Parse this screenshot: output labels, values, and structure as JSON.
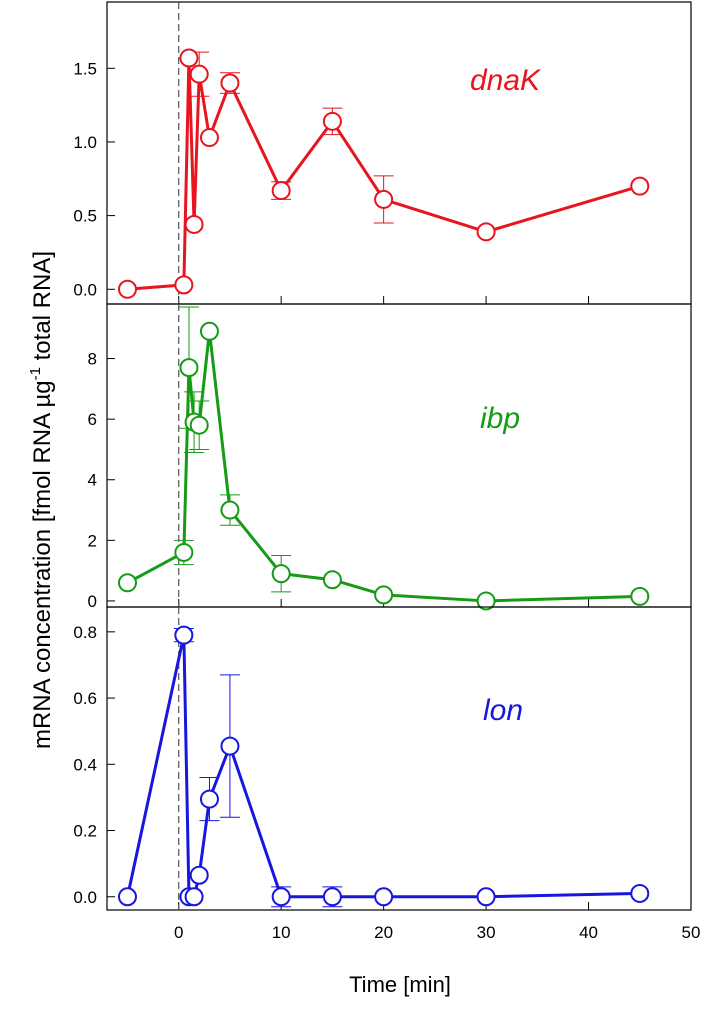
{
  "figure": {
    "ylabel_main": "mRNA concentration [fmol RNA µg",
    "ylabel_sup": "-1",
    "ylabel_tail": " total RNA]",
    "xlabel": "Time [min]"
  },
  "chart_data": [
    {
      "type": "line",
      "series": [
        {
          "name": "dnaK",
          "color": "#e8141e",
          "x": [
            -5,
            0.5,
            1,
            1.5,
            2,
            3,
            5,
            10,
            15,
            20,
            30,
            45
          ],
          "y": [
            0.0,
            0.03,
            1.57,
            0.44,
            1.46,
            1.03,
            1.4,
            0.67,
            1.14,
            0.61,
            0.39,
            0.7
          ],
          "err": [
            0,
            0,
            0,
            0,
            0.15,
            0,
            0.07,
            0.06,
            0.09,
            0.16,
            0,
            0
          ]
        }
      ],
      "xlim": [
        -7,
        50
      ],
      "ylim": [
        -0.1,
        1.95
      ],
      "yticks": [
        0.0,
        0.5,
        1.0,
        1.5
      ],
      "ytick_labels": [
        "0.0",
        "0.5",
        "1.0",
        "1.5"
      ],
      "xticks": [
        0,
        10,
        20,
        30,
        40,
        50
      ],
      "grid": false
    },
    {
      "type": "line",
      "series": [
        {
          "name": "ibp",
          "color": "#169b16",
          "x": [
            -5,
            0.5,
            1,
            1.5,
            2,
            3,
            5,
            10,
            15,
            20,
            30,
            45
          ],
          "y": [
            0.6,
            1.6,
            7.7,
            5.9,
            5.8,
            8.9,
            3.0,
            0.9,
            0.7,
            0.2,
            0.0,
            0.15
          ],
          "err": [
            0,
            0.4,
            2.0,
            1.0,
            0.8,
            0,
            0.5,
            0.6,
            0,
            0,
            0,
            0
          ]
        }
      ],
      "xlim": [
        -7,
        50
      ],
      "ylim": [
        -0.2,
        9.8
      ],
      "yticks": [
        0,
        2,
        4,
        6,
        8
      ],
      "ytick_labels": [
        "0",
        "2",
        "4",
        "6",
        "8"
      ],
      "xticks": [
        0,
        10,
        20,
        30,
        40,
        50
      ],
      "grid": false
    },
    {
      "type": "line",
      "series": [
        {
          "name": "lon",
          "color": "#1717e0",
          "x": [
            -5,
            0.5,
            1,
            1.5,
            2,
            3,
            5,
            10,
            15,
            20,
            30,
            45
          ],
          "y": [
            0.0,
            0.79,
            0.0,
            0.0,
            0.065,
            0.295,
            0.455,
            0.0,
            0.0,
            0.0,
            0.0,
            0.01
          ],
          "err": [
            0,
            0.02,
            0,
            0,
            0,
            0.065,
            0.215,
            0.03,
            0.03,
            0,
            0,
            0
          ]
        }
      ],
      "xlim": [
        -7,
        50
      ],
      "ylim": [
        -0.04,
        0.875
      ],
      "yticks": [
        0.0,
        0.2,
        0.4,
        0.6,
        0.8
      ],
      "ytick_labels": [
        "0.0",
        "0.2",
        "0.4",
        "0.6",
        "0.8"
      ],
      "xticks": [
        0,
        10,
        20,
        30,
        40,
        50
      ],
      "xtick_labels": [
        "0",
        "10",
        "20",
        "30",
        "40",
        "50"
      ],
      "grid": false
    }
  ]
}
